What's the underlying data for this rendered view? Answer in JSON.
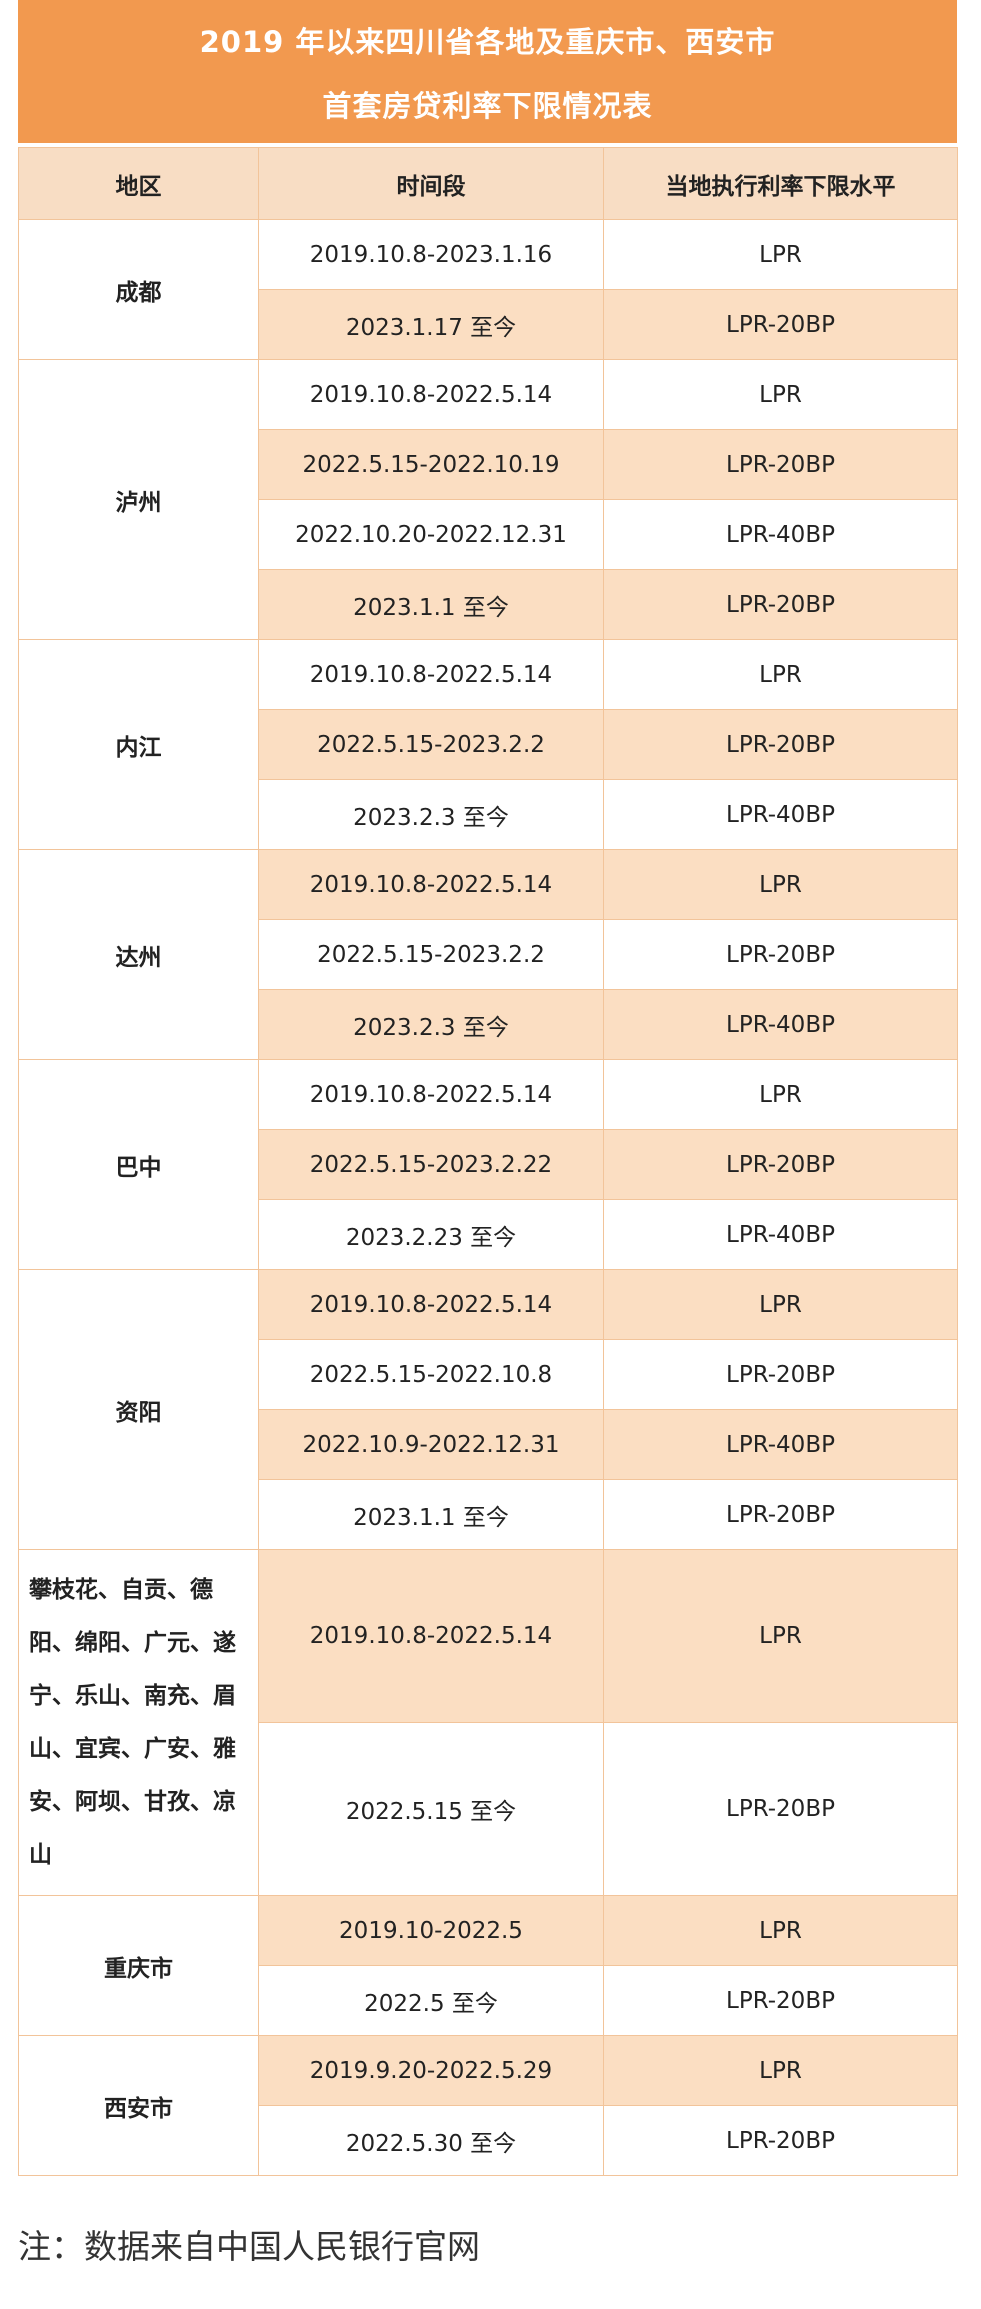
{
  "title_line1": "2019 年以来四川省各地及重庆市、西安市",
  "title_line2": "首套房贷利率下限情况表",
  "headers": [
    "地区",
    "时间段",
    "当地执行利率下限水平"
  ],
  "rows": [
    {
      "region": "成都",
      "period": "2019.10.8-2023.1.16",
      "rate": "LPR"
    },
    {
      "period": "2023.1.17 至今",
      "rate": "LPR-20BP"
    },
    {
      "region": "泸州",
      "period": "2019.10.8-2022.5.14",
      "rate": "LPR"
    },
    {
      "period": "2022.5.15-2022.10.19",
      "rate": "LPR-20BP"
    },
    {
      "period": "2022.10.20-2022.12.31",
      "rate": "LPR-40BP"
    },
    {
      "period": "2023.1.1 至今",
      "rate": "LPR-20BP"
    },
    {
      "region": "内江",
      "period": "2019.10.8-2022.5.14",
      "rate": "LPR"
    },
    {
      "period": "2022.5.15-2023.2.2",
      "rate": "LPR-20BP"
    },
    {
      "period": "2023.2.3 至今",
      "rate": "LPR-40BP"
    },
    {
      "region": "达州",
      "period": "2019.10.8-2022.5.14",
      "rate": "LPR"
    },
    {
      "period": "2022.5.15-2023.2.2",
      "rate": "LPR-20BP"
    },
    {
      "period": "2023.2.3 至今",
      "rate": "LPR-40BP"
    },
    {
      "region": "巴中",
      "period": "2019.10.8-2022.5.14",
      "rate": "LPR"
    },
    {
      "period": "2022.5.15-2023.2.22",
      "rate": "LPR-20BP"
    },
    {
      "period": "2023.2.23 至今",
      "rate": "LPR-40BP"
    },
    {
      "region": "资阳",
      "period": "2019.10.8-2022.5.14",
      "rate": "LPR"
    },
    {
      "period": "2022.5.15-2022.10.8",
      "rate": "LPR-20BP"
    },
    {
      "period": "2022.10.9-2022.12.31",
      "rate": "LPR-40BP"
    },
    {
      "period": "2023.1.1 至今",
      "rate": "LPR-20BP"
    },
    {
      "region": "攀枝花、自贡、德阳、绵阳、广元、遂宁、乐山、南充、眉山、宜宾、广安、雅安、阿坝、甘孜、凉山",
      "period": "2019.10.8-2022.5.14",
      "rate": "LPR"
    },
    {
      "period": "2022.5.15 至今",
      "rate": "LPR-20BP"
    },
    {
      "region": "重庆市",
      "period": "2019.10-2022.5",
      "rate": "LPR"
    },
    {
      "period": "2022.5 至今",
      "rate": "LPR-20BP"
    },
    {
      "region": "西安市",
      "period": "2019.9.20-2022.5.29",
      "rate": "LPR"
    },
    {
      "period": "2022.5.30 至今",
      "rate": "LPR-20BP"
    }
  ],
  "note": "注：数据来自中国人民银行官网"
}
